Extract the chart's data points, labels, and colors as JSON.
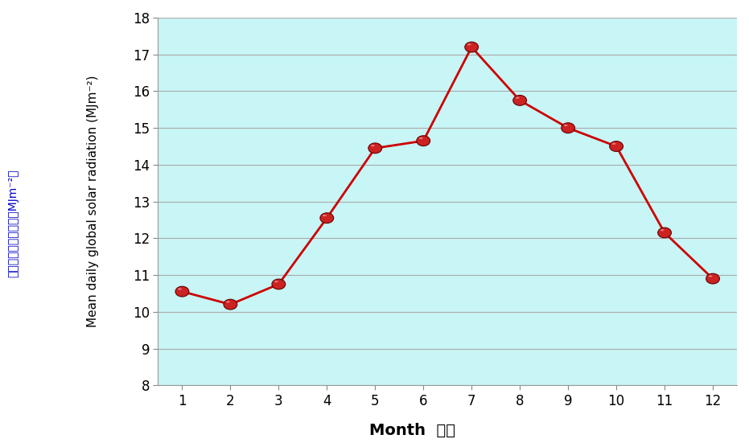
{
  "months": [
    1,
    2,
    3,
    4,
    5,
    6,
    7,
    8,
    9,
    10,
    11,
    12
  ],
  "values": [
    10.55,
    10.2,
    10.75,
    12.55,
    14.45,
    14.65,
    17.2,
    15.75,
    15.0,
    14.5,
    12.15,
    10.9
  ],
  "xlabel_en": "Month",
  "xlabel_zh": "月份",
  "ylabel_en": "Mean daily global solar radiation (MJm⁻²)",
  "ylabel_zh": "平均每日太陽總輺射（MJm⁻²）",
  "ylim": [
    8,
    18
  ],
  "xlim": [
    0.5,
    12.5
  ],
  "yticks": [
    8,
    9,
    10,
    11,
    12,
    13,
    14,
    15,
    16,
    17,
    18
  ],
  "xticks": [
    1,
    2,
    3,
    4,
    5,
    6,
    7,
    8,
    9,
    10,
    11,
    12
  ],
  "line_color": "#CC0000",
  "marker_facecolor": "#CC2222",
  "marker_edgecolor": "#660000",
  "background_color": "#C8F5F5",
  "grid_color": "#AAAAAA",
  "ylabel_en_color": "#000000",
  "ylabel_zh_color": "#0000CC",
  "axis_label_fontsize": 13,
  "tick_fontsize": 12,
  "xlabel_fontsize": 14
}
